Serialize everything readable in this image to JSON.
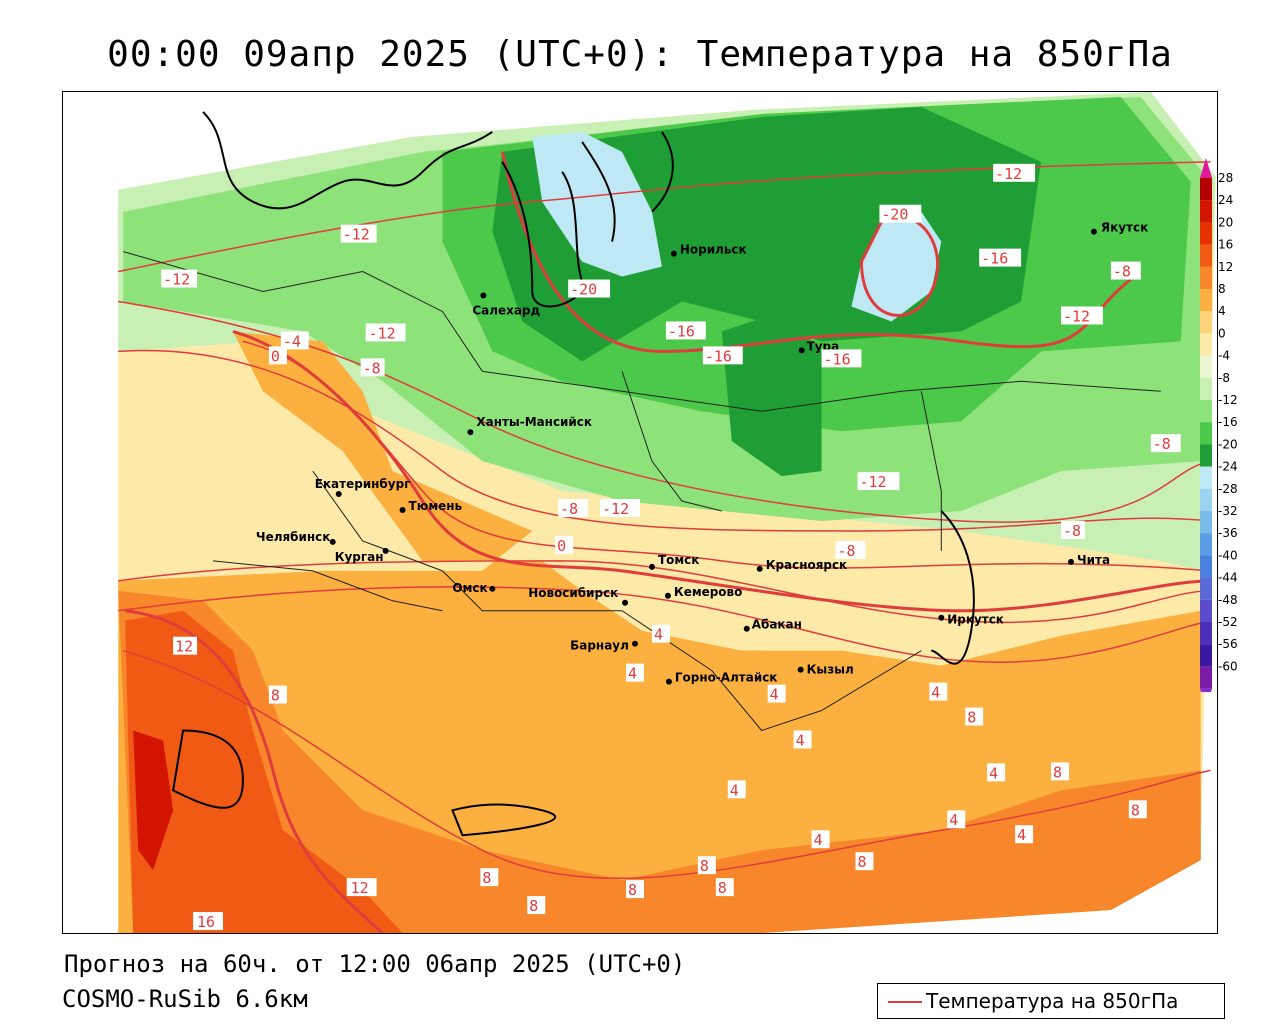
{
  "title": "00:00 09апр 2025 (UTC+0): Температура на 850гПа",
  "footer": {
    "forecast": "Прогноз на 60ч. от 12:00 06апр 2025 (UTC+0)",
    "model": "COSMO-RuSib 6.6км"
  },
  "legend": {
    "series_label": "Температура на 850гПа",
    "line_color": "#e03c3c"
  },
  "colorbar": {
    "ticks": [
      "28",
      "24",
      "20",
      "16",
      "12",
      "8",
      "4",
      "0",
      "-4",
      "-8",
      "-12",
      "-16",
      "-20",
      "-24",
      "-28",
      "-32",
      "-36",
      "-40",
      "-44",
      "-48",
      "-52",
      "-56",
      "-60"
    ],
    "colors": [
      "#b40000",
      "#d21400",
      "#e63200",
      "#f05a14",
      "#f7872a",
      "#fbb040",
      "#fdd27a",
      "#fde9a8",
      "#eaf7d2",
      "#c8f0b4",
      "#8ee27a",
      "#4cc84a",
      "#1e9e34",
      "#bfe8f5",
      "#9bd4f0",
      "#78bcec",
      "#5a9ee6",
      "#4a80de",
      "#5a6ad8",
      "#5a4ccc",
      "#4b2fb8",
      "#3a18a0",
      "#7a1ca8"
    ]
  },
  "cities": [
    {
      "name": "Салехард"
    },
    {
      "name": "Норильск"
    },
    {
      "name": "Якутск"
    },
    {
      "name": "Тура"
    },
    {
      "name": "Ханты-Мансийск"
    },
    {
      "name": "Екатеринбург"
    },
    {
      "name": "Тюмень"
    },
    {
      "name": "Челябинск"
    },
    {
      "name": "Курган"
    },
    {
      "name": "Омск"
    },
    {
      "name": "Новосибирск"
    },
    {
      "name": "Томск"
    },
    {
      "name": "Красноярск"
    },
    {
      "name": "Кемерово"
    },
    {
      "name": "Абакан"
    },
    {
      "name": "Иркутск"
    },
    {
      "name": "Чита"
    },
    {
      "name": "Барнаул"
    },
    {
      "name": "Горно-Алтайск"
    },
    {
      "name": "Кызыл"
    }
  ],
  "contour_labels": [
    "-8",
    "-12",
    "-16",
    "-20",
    "-4",
    "0",
    "4",
    "8",
    "12",
    "16"
  ]
}
